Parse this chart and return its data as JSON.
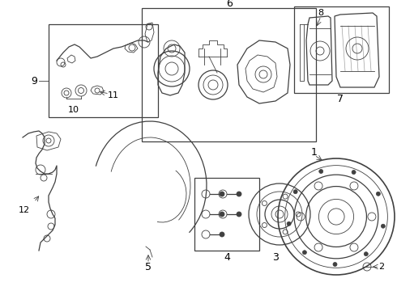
{
  "bg_color": "#ffffff",
  "line_color": "#404040",
  "label_color": "#000000",
  "fig_w": 4.9,
  "fig_h": 3.6,
  "dpi": 100
}
